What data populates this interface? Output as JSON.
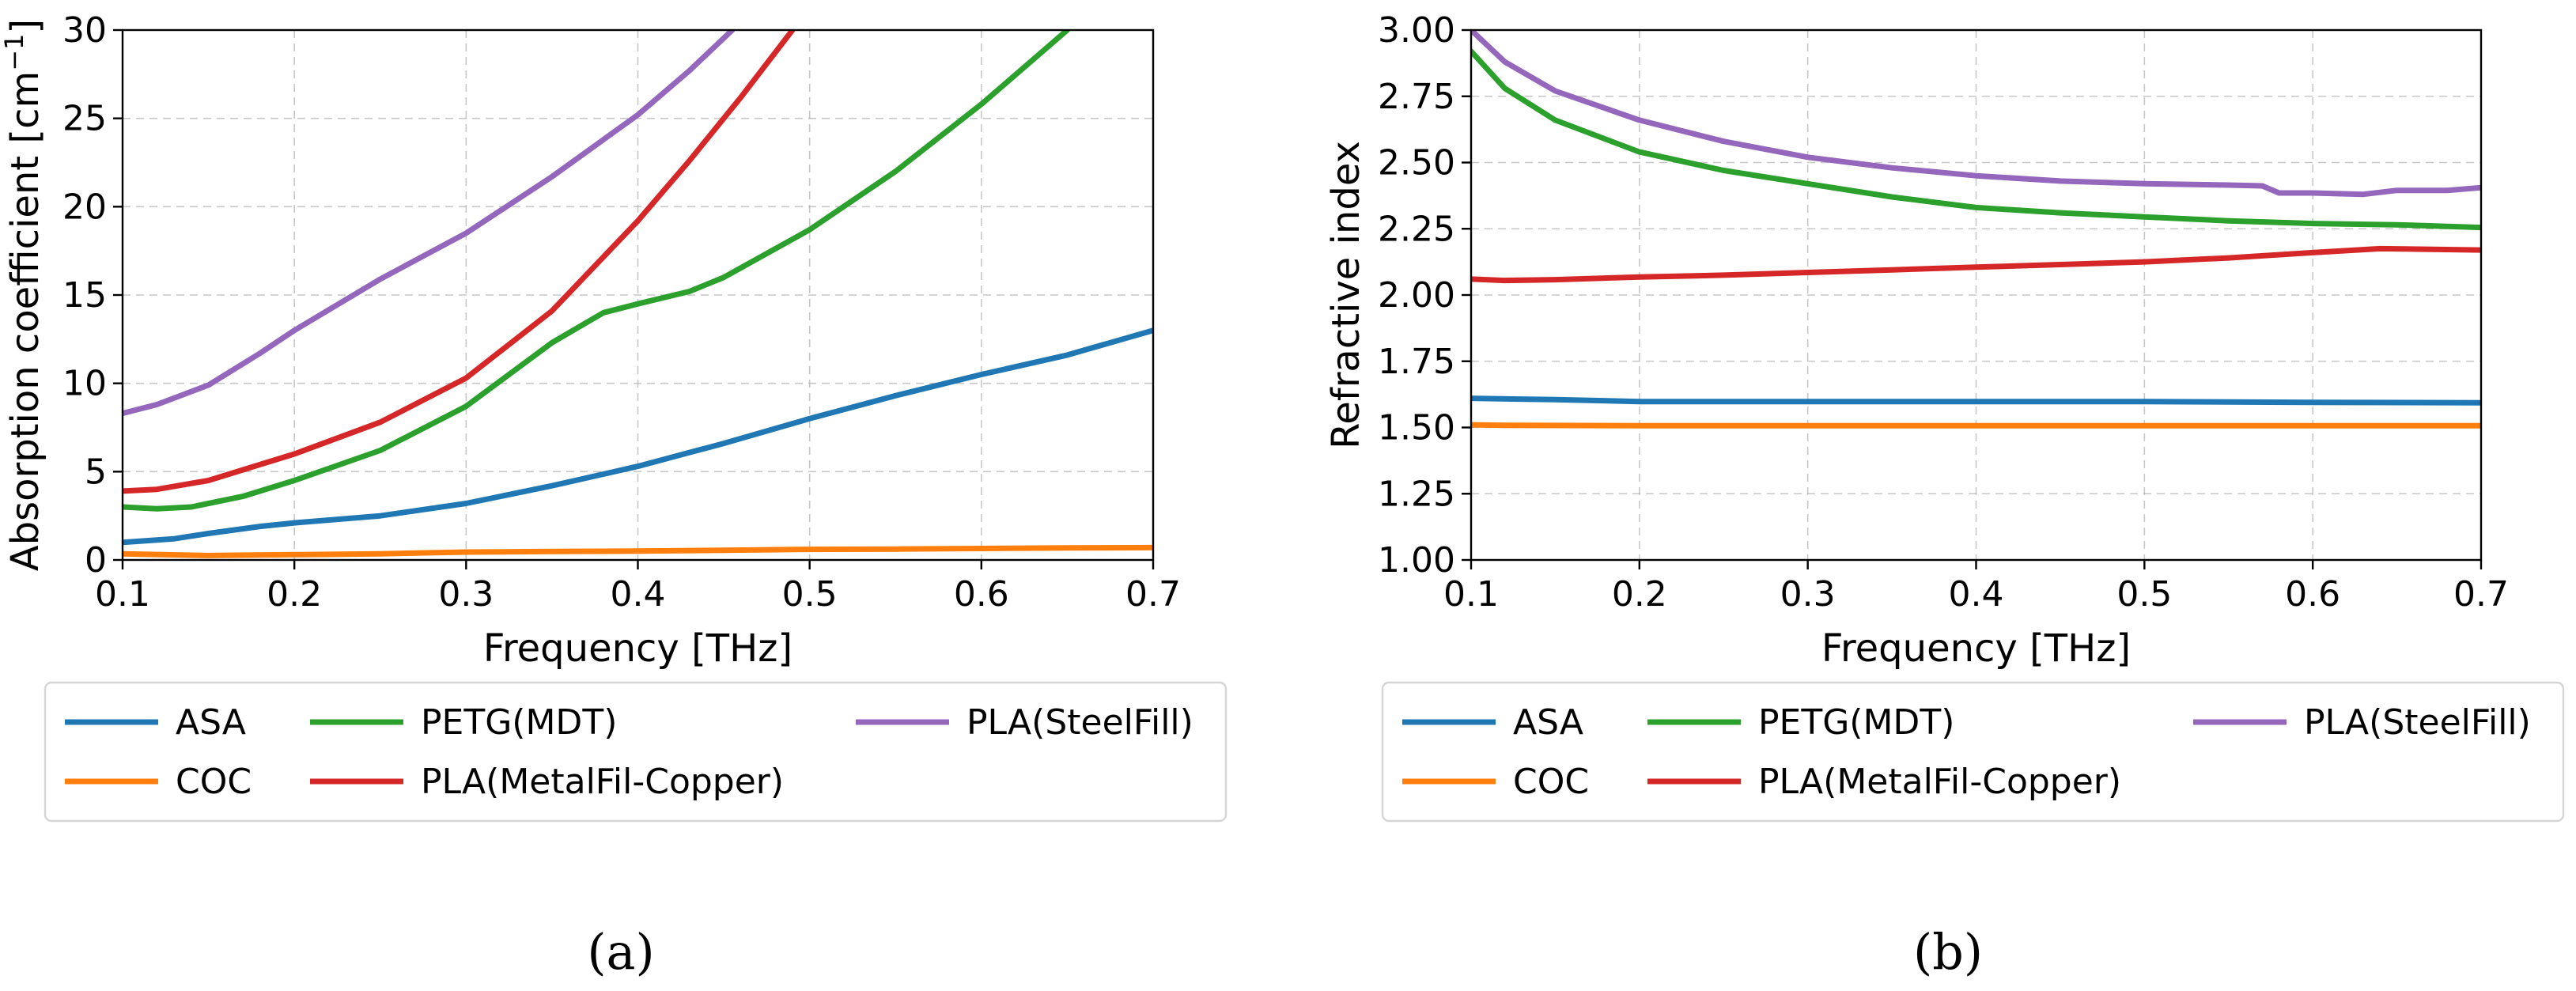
{
  "colors": {
    "ASA": "#1f77b4",
    "COC": "#ff7f0e",
    "PETG(MDT)": "#2ca02c",
    "PLA(MetalFil-Copper)": "#d62728",
    "PLA(SteelFill)": "#9467bd"
  },
  "chart_data": [
    {
      "type": "line",
      "caption": "(a)",
      "xlabel": "Frequency [THz]",
      "ylabel": "Absorption coefficient [cm",
      "ylabel_sup": "−1",
      "ylabel_end": "]",
      "xlim": [
        0.1,
        0.7
      ],
      "ylim": [
        0,
        30
      ],
      "xticks": [
        "0.1",
        "0.2",
        "0.3",
        "0.4",
        "0.5",
        "0.6",
        "0.7"
      ],
      "yticks": [
        "0",
        "5",
        "10",
        "15",
        "20",
        "25",
        "30"
      ],
      "grid": true,
      "legend": "below",
      "series": [
        {
          "name": "ASA",
          "x": [
            0.1,
            0.13,
            0.15,
            0.18,
            0.2,
            0.25,
            0.3,
            0.35,
            0.4,
            0.45,
            0.5,
            0.55,
            0.6,
            0.65,
            0.7
          ],
          "y": [
            1.0,
            1.2,
            1.5,
            1.9,
            2.1,
            2.5,
            3.2,
            4.2,
            5.3,
            6.6,
            8.0,
            9.3,
            10.5,
            11.6,
            13.0
          ]
        },
        {
          "name": "COC",
          "x": [
            0.1,
            0.15,
            0.2,
            0.25,
            0.3,
            0.35,
            0.4,
            0.45,
            0.5,
            0.55,
            0.6,
            0.65,
            0.7
          ],
          "y": [
            0.35,
            0.25,
            0.3,
            0.35,
            0.45,
            0.48,
            0.5,
            0.55,
            0.6,
            0.62,
            0.65,
            0.68,
            0.7
          ]
        },
        {
          "name": "PETG(MDT)",
          "x": [
            0.1,
            0.12,
            0.14,
            0.17,
            0.2,
            0.25,
            0.3,
            0.35,
            0.38,
            0.4,
            0.43,
            0.45,
            0.5,
            0.55,
            0.6,
            0.65
          ],
          "y": [
            3.0,
            2.9,
            3.0,
            3.6,
            4.5,
            6.2,
            8.7,
            12.3,
            14.0,
            14.5,
            15.2,
            16.0,
            18.7,
            22.0,
            25.8,
            30.0
          ]
        },
        {
          "name": "PLA(MetalFil-Copper)",
          "x": [
            0.1,
            0.12,
            0.15,
            0.18,
            0.2,
            0.25,
            0.3,
            0.35,
            0.4,
            0.43,
            0.46,
            0.49
          ],
          "y": [
            3.9,
            4.0,
            4.5,
            5.4,
            6.0,
            7.8,
            10.3,
            14.1,
            19.2,
            22.6,
            26.2,
            30.0
          ]
        },
        {
          "name": "PLA(SteelFill)",
          "x": [
            0.1,
            0.12,
            0.15,
            0.18,
            0.2,
            0.25,
            0.3,
            0.35,
            0.4,
            0.43,
            0.455
          ],
          "y": [
            8.3,
            8.8,
            9.9,
            11.7,
            13.0,
            15.9,
            18.5,
            21.7,
            25.2,
            27.7,
            30.0
          ]
        }
      ]
    },
    {
      "type": "line",
      "caption": "(b)",
      "xlabel": "Frequency [THz]",
      "ylabel": "Refractive index",
      "xlim": [
        0.1,
        0.7
      ],
      "ylim": [
        1.0,
        3.0
      ],
      "xticks": [
        "0.1",
        "0.2",
        "0.3",
        "0.4",
        "0.5",
        "0.6",
        "0.7"
      ],
      "yticks": [
        "1.00",
        "1.25",
        "1.50",
        "1.75",
        "2.00",
        "2.25",
        "2.50",
        "2.75",
        "3.00"
      ],
      "grid": true,
      "legend": "below",
      "series": [
        {
          "name": "ASA",
          "x": [
            0.1,
            0.15,
            0.2,
            0.3,
            0.4,
            0.45,
            0.5,
            0.6,
            0.7
          ],
          "y": [
            1.61,
            1.605,
            1.598,
            1.598,
            1.598,
            1.598,
            1.598,
            1.595,
            1.593
          ]
        },
        {
          "name": "COC",
          "x": [
            0.1,
            0.12,
            0.2,
            0.3,
            0.4,
            0.5,
            0.6,
            0.7
          ],
          "y": [
            1.51,
            1.508,
            1.507,
            1.507,
            1.507,
            1.507,
            1.507,
            1.507
          ]
        },
        {
          "name": "PETG(MDT)",
          "x": [
            0.1,
            0.12,
            0.15,
            0.2,
            0.25,
            0.3,
            0.35,
            0.4,
            0.45,
            0.5,
            0.55,
            0.6,
            0.65,
            0.7
          ],
          "y": [
            2.92,
            2.78,
            2.66,
            2.54,
            2.47,
            2.42,
            2.37,
            2.33,
            2.31,
            2.295,
            2.28,
            2.27,
            2.265,
            2.255
          ]
        },
        {
          "name": "PLA(MetalFil-Copper)",
          "x": [
            0.1,
            0.12,
            0.15,
            0.2,
            0.25,
            0.3,
            0.35,
            0.4,
            0.45,
            0.5,
            0.55,
            0.6,
            0.64,
            0.7
          ],
          "y": [
            2.06,
            2.055,
            2.058,
            2.068,
            2.075,
            2.085,
            2.095,
            2.105,
            2.115,
            2.125,
            2.14,
            2.16,
            2.175,
            2.17
          ]
        },
        {
          "name": "PLA(SteelFill)",
          "x": [
            0.1,
            0.12,
            0.15,
            0.2,
            0.25,
            0.3,
            0.35,
            0.4,
            0.45,
            0.5,
            0.55,
            0.57,
            0.58,
            0.6,
            0.63,
            0.65,
            0.68,
            0.7
          ],
          "y": [
            3.0,
            2.88,
            2.77,
            2.66,
            2.58,
            2.52,
            2.48,
            2.45,
            2.43,
            2.42,
            2.415,
            2.412,
            2.385,
            2.385,
            2.38,
            2.395,
            2.395,
            2.405
          ]
        }
      ]
    }
  ]
}
